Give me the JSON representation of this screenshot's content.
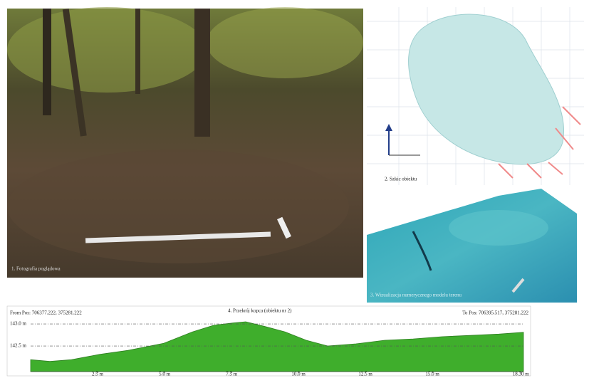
{
  "photo_caption": "1. Fotografia poglądowa",
  "sketch_caption": "2. Szkic obiektu",
  "model_caption": "3. Wizualizacja numerycznego modelu terenu",
  "chart_data": {
    "type": "area",
    "title": "4. Przekrój kopca (obiektu nr 2)",
    "from_label": "From Pos: 706377.222, 375281.222",
    "to_label": "To Pos: 706395.517, 375281.222",
    "color": "#3fae2c",
    "x": [
      0,
      0.72,
      1.52,
      2.58,
      3.64,
      4.97,
      6.04,
      6.84,
      7.53,
      8.03,
      8.7,
      9.5,
      10.29,
      11.09,
      12.15,
      13.22,
      14.28,
      15.35,
      16.41,
      17.48,
      18.4
    ],
    "values": [
      142.19,
      142.15,
      142.19,
      142.31,
      142.4,
      142.56,
      142.82,
      142.97,
      143.02,
      143.05,
      142.95,
      142.82,
      142.63,
      142.5,
      142.55,
      142.63,
      142.66,
      142.71,
      142.74,
      142.77,
      142.81
    ],
    "xlim": [
      0,
      18.4
    ],
    "ylim": [
      141.92,
      143.13
    ],
    "xticks": [
      {
        "value": 2.5,
        "label": "2.5 m"
      },
      {
        "value": 5,
        "label": "5.0 m"
      },
      {
        "value": 7.5,
        "label": "7.5 m"
      },
      {
        "value": 10,
        "label": "10.0 m"
      },
      {
        "value": 12.5,
        "label": "12.5 m"
      },
      {
        "value": 15,
        "label": "15.0 m"
      },
      {
        "value": 18.3,
        "label": "18.30 m"
      }
    ],
    "yticks": [
      {
        "value": 142.5,
        "label": "142.5 m"
      },
      {
        "value": 143,
        "label": "143.0 m"
      }
    ],
    "grid": true
  }
}
